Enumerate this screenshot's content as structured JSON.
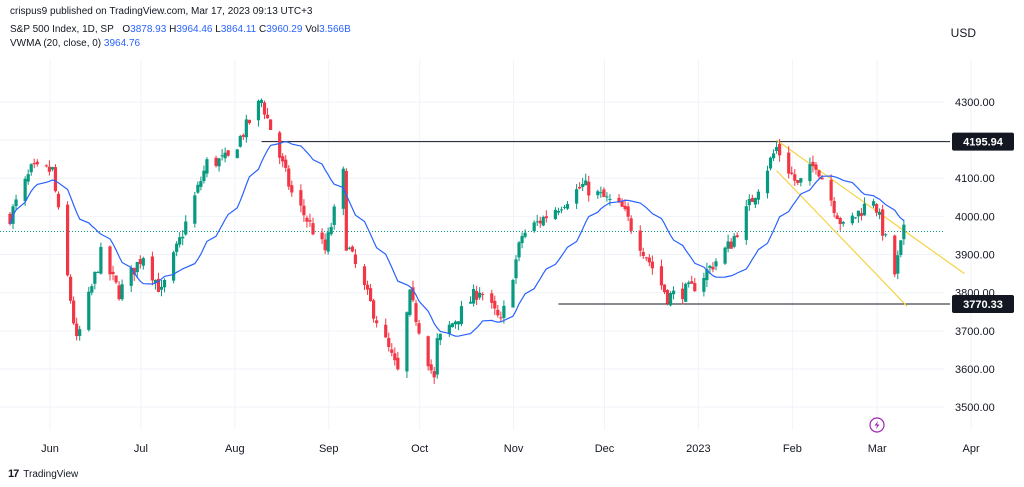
{
  "header": {
    "publisher": "crispus9 published on TradingView.com, Mar 17, 2023 09:13 UTC+3",
    "symbol": "S&P 500 Index, 1D, SP",
    "ohlc": {
      "o_label": "O",
      "o": "3878.93",
      "h_label": "H",
      "h": "3964.46",
      "l_label": "L",
      "l": "3864.11",
      "c_label": "C",
      "c": "3960.29",
      "vol_label": "Vol",
      "vol": "3.566B"
    },
    "indicator": {
      "label": "VWMA (20, close, 0)",
      "value": "3964.76"
    },
    "currency": "USD"
  },
  "footer": {
    "brand": "TradingView",
    "brand_mark": "17"
  },
  "colors": {
    "up": "#089981",
    "down": "#f23645",
    "vwma": "#2962ff",
    "channel": "#f5d342",
    "level": "#131722",
    "current": "#089981"
  },
  "chart_data": {
    "type": "candlestick",
    "y_axis": {
      "min": 3440,
      "max": 4410,
      "ticks": [
        3500,
        3600,
        3700,
        3800,
        3900,
        4000,
        4100,
        4200,
        4300
      ],
      "tick_labels": [
        "3500.00",
        "3600.00",
        "3700.00",
        "3800.00",
        "3900.00",
        "4000.00",
        "4100.00",
        "4200.00",
        "4300.00"
      ]
    },
    "x_axis": {
      "labels": [
        "Jun",
        "Jul",
        "Aug",
        "Sep",
        "Oct",
        "Nov",
        "Dec",
        "2023",
        "Feb",
        "Mar",
        "Apr"
      ],
      "label_days": [
        0,
        30,
        61,
        92,
        122,
        153,
        183,
        214,
        245,
        273,
        304
      ]
    },
    "date_range": {
      "first_candle": "2022-05-25",
      "last_candle": "2023-03-16"
    },
    "horizontal_levels": [
      {
        "label": "4195.94",
        "value": 4195.94,
        "from": "2022-08-16"
      },
      {
        "label": "3770.33",
        "value": 3770.33,
        "from": "2022-11-22"
      }
    ],
    "current_price": 3960.29,
    "channel": {
      "upper": [
        [
          "2023-02-02",
          4200
        ],
        [
          "2023-04-05",
          3850
        ]
      ],
      "lower": [
        [
          "2023-02-02",
          4120
        ],
        [
          "2023-03-17",
          3765
        ]
      ]
    },
    "indicator": "VWMA (20, close, 0)",
    "watermark_icon": "lightning-icon"
  }
}
